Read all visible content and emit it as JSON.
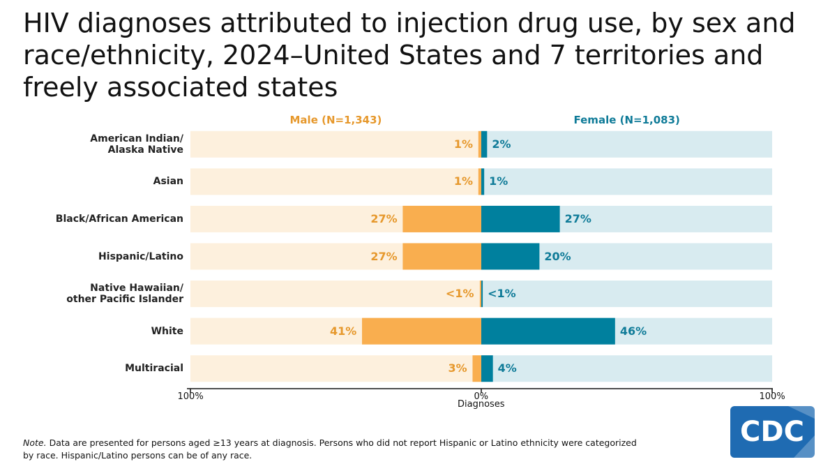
{
  "chart_data": {
    "type": "butterfly-bar",
    "title": "HIV diagnoses attributed to injection drug use, by sex and race/ethnicity, 2024–United States and 7 territories and freely associated states",
    "categories": [
      "American Indian/\nAlaska Native",
      "Asian",
      "Black/African American",
      "Hispanic/Latino",
      "Native Hawaiian/\nother Pacific Islander",
      "White",
      "Multiracial"
    ],
    "series": [
      {
        "name": "Male (N=1,343)",
        "side": "left",
        "color": "#f9ae4f",
        "track_color": "#fdf0dd",
        "label_color": "#e6982c",
        "values": [
          1,
          1,
          27,
          27,
          0.5,
          41,
          3
        ],
        "value_labels": [
          "1%",
          "1%",
          "27%",
          "27%",
          "<1%",
          "41%",
          "3%"
        ]
      },
      {
        "name": "Female (N=1,083)",
        "side": "right",
        "color": "#00809e",
        "track_color": "#d8ebf0",
        "label_color": "#0f7b98",
        "values": [
          2,
          1,
          27,
          20,
          0.5,
          46,
          4
        ],
        "value_labels": [
          "2%",
          "1%",
          "27%",
          "20%",
          "<1%",
          "46%",
          "4%"
        ]
      }
    ],
    "xlim": [
      -100,
      100
    ],
    "xticks": [
      {
        "value": -100,
        "label": "100%"
      },
      {
        "value": 0,
        "label": "0%"
      },
      {
        "value": 100,
        "label": "100%"
      }
    ],
    "xlabel": "Diagnoses",
    "note_label": "Note.",
    "note": "Data are presented for persons aged ≥13 years at diagnosis. Persons who did not report Hispanic or Latino ethnicity were categorized by race. Hispanic/Latino persons can be of any race.",
    "logo": "CDC"
  }
}
